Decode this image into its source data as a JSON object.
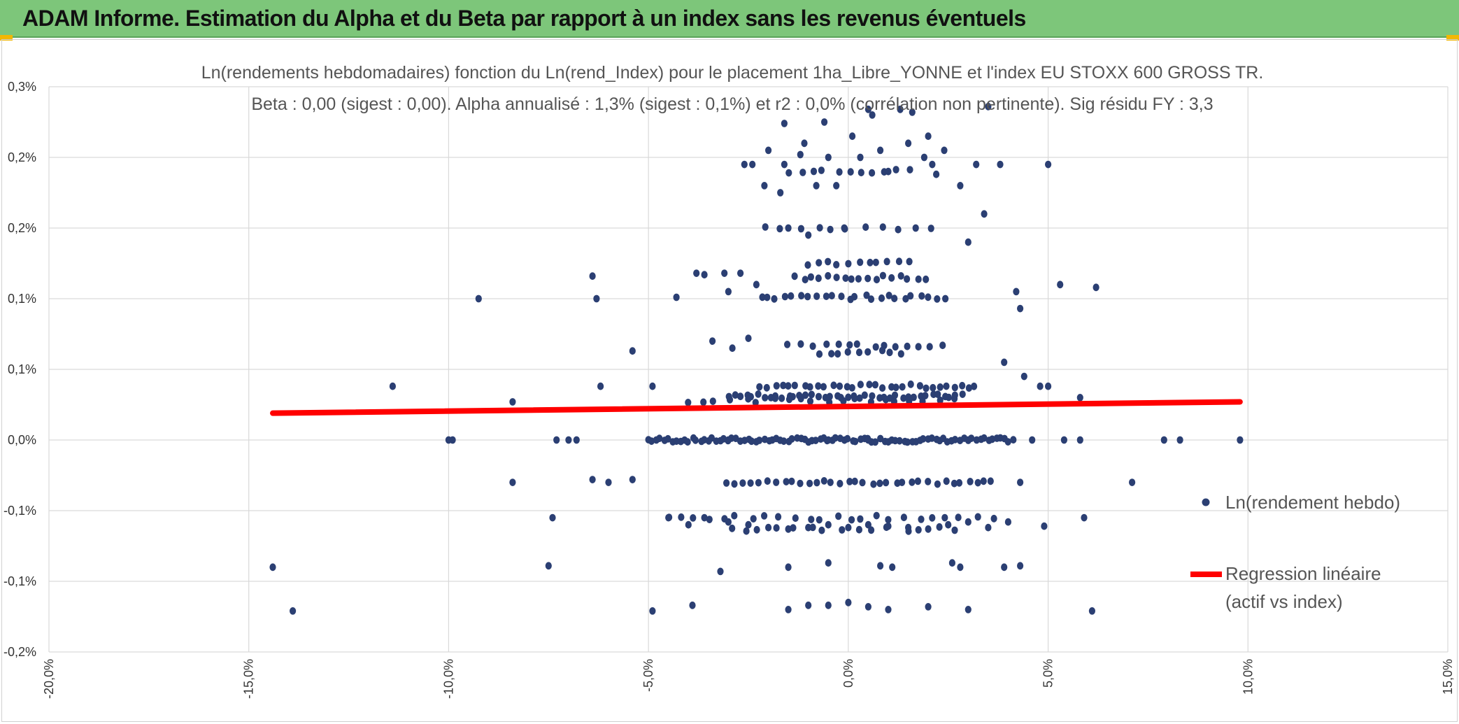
{
  "header": {
    "title": "ADAM Informe. Estimation du Alpha et du Beta par rapport à un index sans les revenus éventuels"
  },
  "chart_data": {
    "type": "scatter",
    "title": "Ln(rendements hebdomadaires) fonction du Ln(rend_Index) pour le placement 1ha_Libre_YONNE et l'index EU STOXX 600 GROSS TR.",
    "subtitle": "Beta : 0,00 (sigest : 0,00). Alpha annualisé : 1,3% (sigest : 0,1%) et r2 : 0,0% (corrélation non pertinente). Sig résidu FY : 3,3",
    "xlabel": "",
    "ylabel": "",
    "xlim": [
      -0.2,
      0.15
    ],
    "ylim": [
      -0.0015,
      0.0025
    ],
    "grid": true,
    "legend_position": "right",
    "x_tick_values": [
      -0.2,
      -0.15,
      -0.1,
      -0.05,
      0.0,
      0.05,
      0.1,
      0.15
    ],
    "x_tick_labels": [
      "-20,0%",
      "-15,0%",
      "-10,0%",
      "-5,0%",
      "0,0%",
      "5,0%",
      "10,0%",
      "15,0%"
    ],
    "y_tick_values": [
      -0.0015,
      -0.001,
      -0.0005,
      0.0,
      0.0005,
      0.001,
      0.0015,
      0.002,
      0.0025
    ],
    "y_tick_labels": [
      "-0,2%",
      "-0,1%",
      "-0,1%",
      "0,0%",
      "0,1%",
      "0,1%",
      "0,2%",
      "0,2%",
      "0,3%"
    ],
    "colors": {
      "scatter": "#2b3f73",
      "regression": "#ff0000",
      "grid": "#d9d9d9"
    },
    "series": [
      {
        "name": "Ln(rendement hebdo)",
        "type": "scatter",
        "points": [
          [
            -0.144,
            -0.0009
          ],
          [
            -0.139,
            -0.00121
          ],
          [
            -0.114,
            0.00038
          ],
          [
            -0.0925,
            0.001
          ],
          [
            -0.084,
            0.00027
          ],
          [
            -0.084,
            -0.0003
          ],
          [
            -0.064,
            0.00116
          ],
          [
            -0.063,
            0.001
          ],
          [
            -0.054,
            0.00063
          ],
          [
            -0.062,
            0.00038
          ],
          [
            -0.049,
            0.00038
          ],
          [
            -0.043,
            0.00101
          ],
          [
            -0.038,
            0.00118
          ],
          [
            -0.036,
            0.00117
          ],
          [
            -0.034,
            0.0007
          ],
          [
            -0.031,
            0.00118
          ],
          [
            -0.03,
            0.00105
          ],
          [
            -0.029,
            0.00065
          ],
          [
            -0.027,
            0.00118
          ],
          [
            -0.026,
            0.00195
          ],
          [
            -0.025,
            0.00072
          ],
          [
            -0.024,
            0.00195
          ],
          [
            -0.023,
            0.0011
          ],
          [
            -0.021,
            0.0018
          ],
          [
            -0.02,
            0.00205
          ],
          [
            -0.017,
            0.00175
          ],
          [
            -0.016,
            0.00224
          ],
          [
            -0.016,
            0.00195
          ],
          [
            -0.015,
            0.0015
          ],
          [
            -0.012,
            0.00202
          ],
          [
            -0.011,
            0.0021
          ],
          [
            -0.01,
            0.00145
          ],
          [
            -0.008,
            0.0018
          ],
          [
            -0.006,
            0.00225
          ],
          [
            -0.005,
            0.002
          ],
          [
            -0.003,
            0.0018
          ],
          [
            -0.001,
            0.0015
          ],
          [
            0.001,
            0.00215
          ],
          [
            0.003,
            0.002
          ],
          [
            0.005,
            0.00234
          ],
          [
            0.006,
            0.0023
          ],
          [
            0.008,
            0.00205
          ],
          [
            0.01,
            0.0019
          ],
          [
            0.013,
            0.00234
          ],
          [
            0.015,
            0.0021
          ],
          [
            0.016,
            0.00232
          ],
          [
            0.019,
            0.002
          ],
          [
            0.02,
            0.00215
          ],
          [
            0.021,
            0.00195
          ],
          [
            0.022,
            0.00188
          ],
          [
            0.024,
            0.00205
          ],
          [
            0.028,
            0.0018
          ],
          [
            0.03,
            0.0014
          ],
          [
            0.032,
            0.00195
          ],
          [
            0.034,
            0.0016
          ],
          [
            0.035,
            0.00236
          ],
          [
            0.038,
            0.00195
          ],
          [
            0.042,
            0.00105
          ],
          [
            0.043,
            0.00093
          ],
          [
            0.05,
            0.00195
          ],
          [
            0.053,
            0.0011
          ],
          [
            0.062,
            0.00108
          ],
          [
            0.039,
            0.00055
          ],
          [
            0.044,
            0.00045
          ],
          [
            0.048,
            0.00038
          ],
          [
            0.05,
            0.00038
          ],
          [
            0.058,
            0.0003
          ],
          [
            0.046,
            0.0
          ],
          [
            0.054,
            0.0
          ],
          [
            0.058,
            0.0
          ],
          [
            0.079,
            0.0
          ],
          [
            0.083,
            0.0
          ],
          [
            0.098,
            0.0
          ],
          [
            0.071,
            -0.0003
          ],
          [
            0.059,
            -0.00055
          ],
          [
            0.049,
            -0.00061
          ],
          [
            0.043,
            -0.0003
          ],
          [
            0.043,
            -0.00089
          ],
          [
            0.039,
            -0.0009
          ],
          [
            0.03,
            -0.0012
          ],
          [
            0.061,
            -0.00121
          ],
          [
            0.028,
            -0.0009
          ],
          [
            0.026,
            -0.00087
          ],
          [
            0.011,
            -0.0009
          ],
          [
            0.008,
            -0.00089
          ],
          [
            -0.005,
            -0.00087
          ],
          [
            -0.015,
            -0.0009
          ],
          [
            -0.032,
            -0.00093
          ],
          [
            -0.049,
            -0.00121
          ],
          [
            -0.039,
            -0.00117
          ],
          [
            -0.075,
            -0.00089
          ],
          [
            -0.074,
            -0.00055
          ],
          [
            -0.068,
            0.0
          ],
          [
            -0.073,
            0.0
          ],
          [
            -0.1,
            0.0
          ],
          [
            -0.099,
            0.0
          ],
          [
            -0.07,
            0.0
          ],
          [
            -0.064,
            -0.00028
          ],
          [
            -0.06,
            -0.0003
          ],
          [
            -0.054,
            -0.00028
          ],
          [
            -0.04,
            -0.0006
          ],
          [
            -0.045,
            -0.00055
          ],
          [
            -0.036,
            -0.00055
          ],
          [
            -0.03,
            -0.00058
          ],
          [
            -0.025,
            -0.0006
          ],
          [
            -0.02,
            -0.00062
          ],
          [
            -0.015,
            -0.00063
          ],
          [
            -0.01,
            -0.00062
          ],
          [
            -0.005,
            -0.0006
          ],
          [
            0.0,
            -0.00062
          ],
          [
            0.005,
            -0.0006
          ],
          [
            0.01,
            -0.00061
          ],
          [
            0.015,
            -0.00062
          ],
          [
            0.02,
            -0.00063
          ],
          [
            0.025,
            -0.0006
          ],
          [
            0.03,
            -0.00058
          ],
          [
            0.035,
            -0.00062
          ],
          [
            0.04,
            -0.00058
          ],
          [
            -0.015,
            -0.0012
          ],
          [
            -0.01,
            -0.00117
          ],
          [
            -0.005,
            -0.00117
          ],
          [
            0.0,
            -0.00115
          ],
          [
            0.005,
            -0.00118
          ],
          [
            0.01,
            -0.0012
          ],
          [
            0.02,
            -0.00118
          ],
          [
            -0.005,
            0.0
          ],
          [
            0.005,
            0.0
          ],
          [
            -0.03,
            0.0
          ],
          [
            0.03,
            0.0
          ]
        ]
      },
      {
        "name": "Regression linéaire (actif vs index)",
        "type": "line",
        "points": [
          [
            -0.144,
            0.00019
          ],
          [
            0.098,
            0.00027
          ]
        ]
      }
    ],
    "bands": [
      {
        "y": 0.0,
        "x_from": -0.05,
        "x_to": 0.042,
        "density": 0.001
      },
      {
        "y": 0.00031,
        "x_from": -0.03,
        "x_to": 0.03,
        "density": 0.0015
      },
      {
        "y": 0.00038,
        "x_from": -0.022,
        "x_to": 0.033,
        "density": 0.0018
      },
      {
        "y": 0.00028,
        "x_from": -0.04,
        "x_to": 0.028,
        "density": 0.0035
      },
      {
        "y": -0.0003,
        "x_from": -0.03,
        "x_to": 0.038,
        "density": 0.002
      },
      {
        "y": -0.00055,
        "x_from": -0.045,
        "x_to": 0.038,
        "density": 0.0035
      },
      {
        "y": -0.00063,
        "x_from": -0.03,
        "x_to": 0.03,
        "density": 0.004
      },
      {
        "y": 0.00067,
        "x_from": -0.015,
        "x_to": 0.025,
        "density": 0.003
      },
      {
        "y": 0.00062,
        "x_from": -0.007,
        "x_to": 0.015,
        "density": 0.0025
      },
      {
        "y": 0.00101,
        "x_from": -0.022,
        "x_to": 0.025,
        "density": 0.002
      },
      {
        "y": 0.00115,
        "x_from": -0.013,
        "x_to": 0.02,
        "density": 0.002
      },
      {
        "y": 0.00125,
        "x_from": -0.01,
        "x_to": 0.017,
        "density": 0.0025
      },
      {
        "y": 0.0015,
        "x_from": -0.02,
        "x_to": 0.022,
        "density": 0.004
      },
      {
        "y": 0.0019,
        "x_from": -0.015,
        "x_to": 0.015,
        "density": 0.003
      }
    ]
  }
}
